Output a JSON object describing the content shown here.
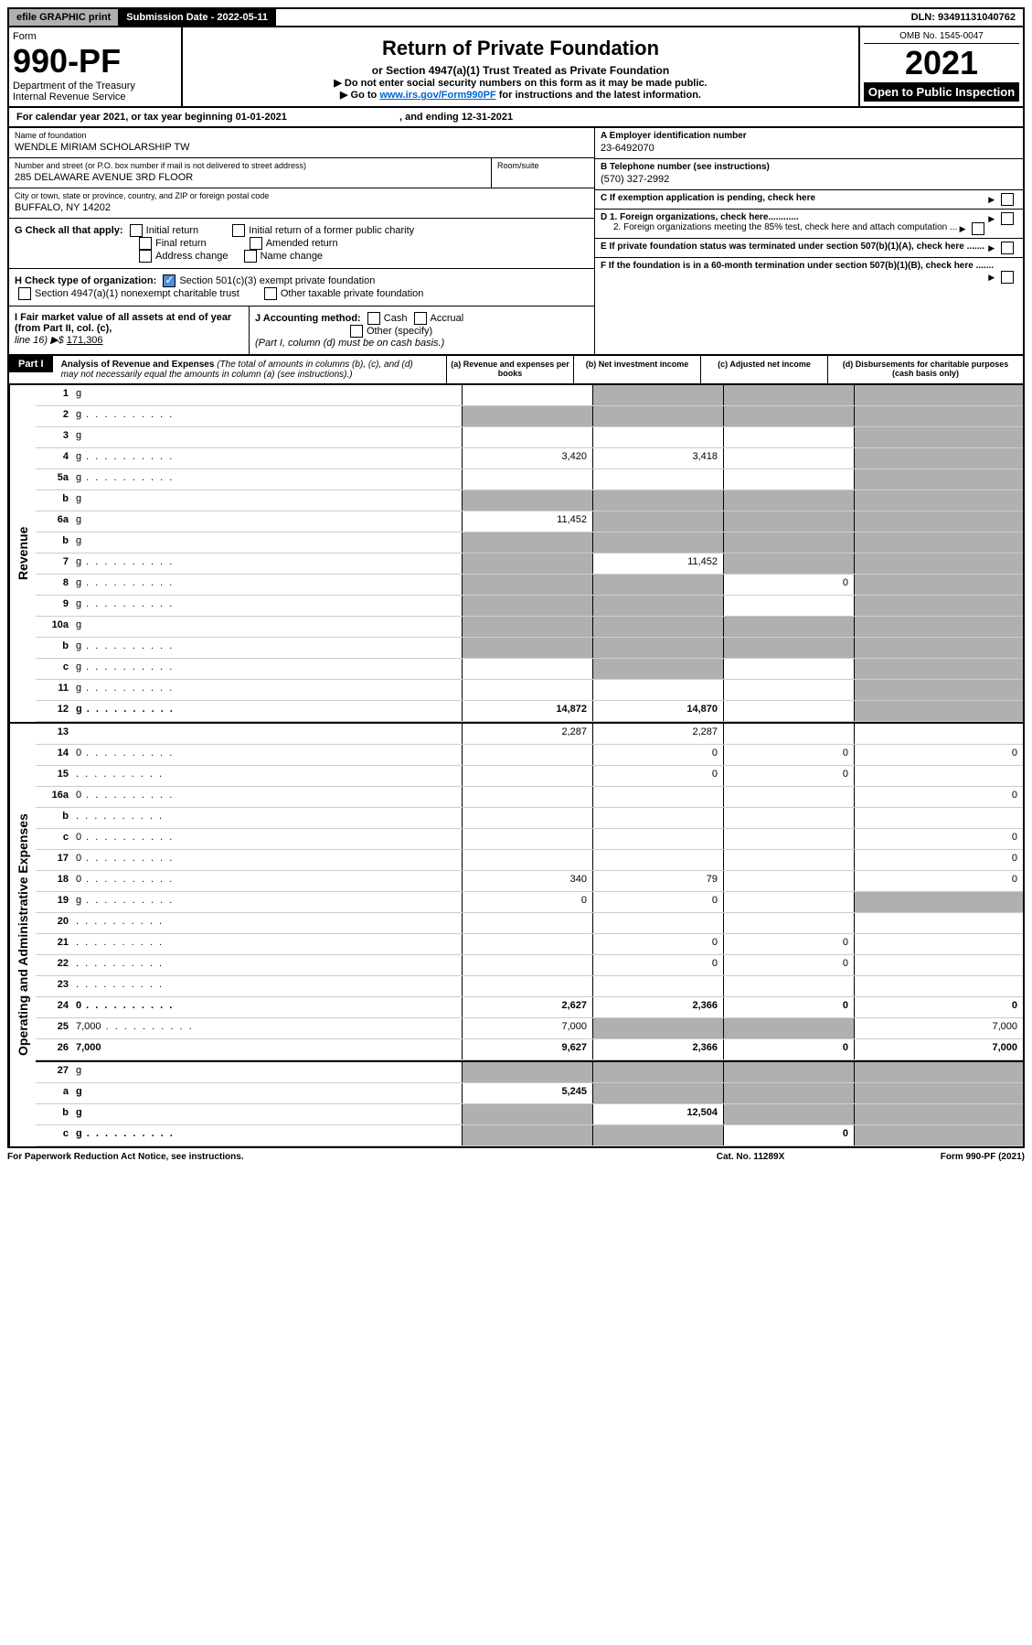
{
  "topbar": {
    "efile": "efile GRAPHIC print",
    "subdate_label": "Submission Date - ",
    "subdate": "2022-05-11",
    "dln_label": "DLN: ",
    "dln": "93491131040762"
  },
  "header": {
    "form_label": "Form",
    "form_num": "990-PF",
    "dept": "Department of the Treasury",
    "irs": "Internal Revenue Service",
    "title": "Return of Private Foundation",
    "subtitle": "or Section 4947(a)(1) Trust Treated as Private Foundation",
    "note1": "▶ Do not enter social security numbers on this form as it may be made public.",
    "note2_pre": "▶ Go to ",
    "note2_link": "www.irs.gov/Form990PF",
    "note2_post": " for instructions and the latest information.",
    "omb": "OMB No. 1545-0047",
    "year": "2021",
    "open": "Open to Public Inspection"
  },
  "calyear": {
    "text": "For calendar year 2021, or tax year beginning 01-01-2021",
    "ending": ", and ending 12-31-2021"
  },
  "info": {
    "name_label": "Name of foundation",
    "name": "WENDLE MIRIAM SCHOLARSHIP TW",
    "addr_label": "Number and street (or P.O. box number if mail is not delivered to street address)",
    "addr": "285 DELAWARE AVENUE 3RD FLOOR",
    "room_label": "Room/suite",
    "city_label": "City or town, state or province, country, and ZIP or foreign postal code",
    "city": "BUFFALO, NY  14202",
    "ein_label": "A Employer identification number",
    "ein": "23-6492070",
    "phone_label": "B Telephone number (see instructions)",
    "phone": "(570) 327-2992",
    "c": "C If exemption application is pending, check here",
    "d1": "D 1. Foreign organizations, check here............",
    "d2": "2. Foreign organizations meeting the 85% test, check here and attach computation ...",
    "e": "E If private foundation status was terminated under section 507(b)(1)(A), check here .......",
    "f": "F  If the foundation is in a 60-month termination under section 507(b)(1)(B), check here .......",
    "g_label": "G Check all that apply:",
    "g_initial": "Initial return",
    "g_initial_former": "Initial return of a former public charity",
    "g_final": "Final return",
    "g_amended": "Amended return",
    "g_addr": "Address change",
    "g_name": "Name change",
    "h_label": "H Check type of organization:",
    "h_501c3": "Section 501(c)(3) exempt private foundation",
    "h_4947": "Section 4947(a)(1) nonexempt charitable trust",
    "h_other": "Other taxable private foundation",
    "i_label": "I Fair market value of all assets at end of year (from Part II, col. (c),",
    "i_line": "line 16) ▶$ ",
    "i_val": "171,306",
    "j_label": "J Accounting method:",
    "j_cash": "Cash",
    "j_accrual": "Accrual",
    "j_other": "Other (specify)",
    "j_note": "(Part I, column (d) must be on cash basis.)"
  },
  "part1": {
    "label": "Part I",
    "title": "Analysis of Revenue and Expenses",
    "title_note": "(The total of amounts in columns (b), (c), and (d) may not necessarily equal the amounts in column (a) (see instructions).)",
    "col_a": "(a)   Revenue and expenses per books",
    "col_b": "(b)   Net investment income",
    "col_c": "(c)   Adjusted net income",
    "col_d": "(d)   Disbursements for charitable purposes (cash basis only)",
    "vert_rev": "Revenue",
    "vert_exp": "Operating and Administrative Expenses"
  },
  "rows": [
    {
      "n": "1",
      "d": "g",
      "a": "",
      "b": "g",
      "c": "g"
    },
    {
      "n": "2",
      "d": "g",
      "dots": true,
      "a": "g",
      "b": "g",
      "c": "g"
    },
    {
      "n": "3",
      "d": "g",
      "a": "",
      "b": "",
      "c": ""
    },
    {
      "n": "4",
      "d": "g",
      "dots": true,
      "a": "3,420",
      "b": "3,418",
      "c": ""
    },
    {
      "n": "5a",
      "d": "g",
      "dots": true,
      "a": "",
      "b": "",
      "c": ""
    },
    {
      "n": "b",
      "d": "g",
      "a": "g",
      "b": "g",
      "c": "g"
    },
    {
      "n": "6a",
      "d": "g",
      "a": "11,452",
      "b": "g",
      "c": "g"
    },
    {
      "n": "b",
      "d": "g",
      "a": "g",
      "b": "g",
      "c": "g"
    },
    {
      "n": "7",
      "d": "g",
      "dots": true,
      "a": "g",
      "b": "11,452",
      "c": "g"
    },
    {
      "n": "8",
      "d": "g",
      "dots": true,
      "a": "g",
      "b": "g",
      "c": "0"
    },
    {
      "n": "9",
      "d": "g",
      "dots": true,
      "a": "g",
      "b": "g",
      "c": ""
    },
    {
      "n": "10a",
      "d": "g",
      "a": "g",
      "b": "g",
      "c": "g"
    },
    {
      "n": "b",
      "d": "g",
      "dots": true,
      "a": "g",
      "b": "g",
      "c": "g"
    },
    {
      "n": "c",
      "d": "g",
      "dots": true,
      "a": "",
      "b": "g",
      "c": ""
    },
    {
      "n": "11",
      "d": "g",
      "dots": true,
      "a": "",
      "b": "",
      "c": ""
    },
    {
      "n": "12",
      "d": "g",
      "dots": true,
      "bold": true,
      "a": "14,872",
      "b": "14,870",
      "c": ""
    }
  ],
  "exp_rows": [
    {
      "n": "13",
      "d": "",
      "a": "2,287",
      "b": "2,287",
      "c": ""
    },
    {
      "n": "14",
      "d": "0",
      "dots": true,
      "a": "",
      "b": "0",
      "c": "0"
    },
    {
      "n": "15",
      "d": "",
      "dots": true,
      "a": "",
      "b": "0",
      "c": "0"
    },
    {
      "n": "16a",
      "d": "0",
      "dots": true,
      "a": "",
      "b": "",
      "c": ""
    },
    {
      "n": "b",
      "d": "",
      "dots": true,
      "a": "",
      "b": "",
      "c": ""
    },
    {
      "n": "c",
      "d": "0",
      "dots": true,
      "a": "",
      "b": "",
      "c": ""
    },
    {
      "n": "17",
      "d": "0",
      "dots": true,
      "a": "",
      "b": "",
      "c": ""
    },
    {
      "n": "18",
      "d": "0",
      "dots": true,
      "a": "340",
      "b": "79",
      "c": ""
    },
    {
      "n": "19",
      "d": "g",
      "dots": true,
      "a": "0",
      "b": "0",
      "c": ""
    },
    {
      "n": "20",
      "d": "",
      "dots": true,
      "a": "",
      "b": "",
      "c": ""
    },
    {
      "n": "21",
      "d": "",
      "dots": true,
      "a": "",
      "b": "0",
      "c": "0"
    },
    {
      "n": "22",
      "d": "",
      "dots": true,
      "a": "",
      "b": "0",
      "c": "0"
    },
    {
      "n": "23",
      "d": "",
      "dots": true,
      "a": "",
      "b": "",
      "c": ""
    },
    {
      "n": "24",
      "d": "0",
      "dots": true,
      "bold": true,
      "a": "2,627",
      "b": "2,366",
      "c": "0"
    },
    {
      "n": "25",
      "d": "7,000",
      "dots": true,
      "a": "7,000",
      "b": "g",
      "c": "g"
    },
    {
      "n": "26",
      "d": "7,000",
      "bold": true,
      "a": "9,627",
      "b": "2,366",
      "c": "0"
    },
    {
      "n": "27",
      "d": "g",
      "a": "g",
      "b": "g",
      "c": "g",
      "thick": true
    },
    {
      "n": "a",
      "d": "g",
      "bold": true,
      "a": "5,245",
      "b": "g",
      "c": "g"
    },
    {
      "n": "b",
      "d": "g",
      "bold": true,
      "a": "g",
      "b": "12,504",
      "c": "g"
    },
    {
      "n": "c",
      "d": "g",
      "dots": true,
      "bold": true,
      "a": "g",
      "b": "g",
      "c": "0"
    }
  ],
  "footer": {
    "left": "For Paperwork Reduction Act Notice, see instructions.",
    "mid": "Cat. No. 11289X",
    "right": "Form 990-PF (2021)"
  }
}
